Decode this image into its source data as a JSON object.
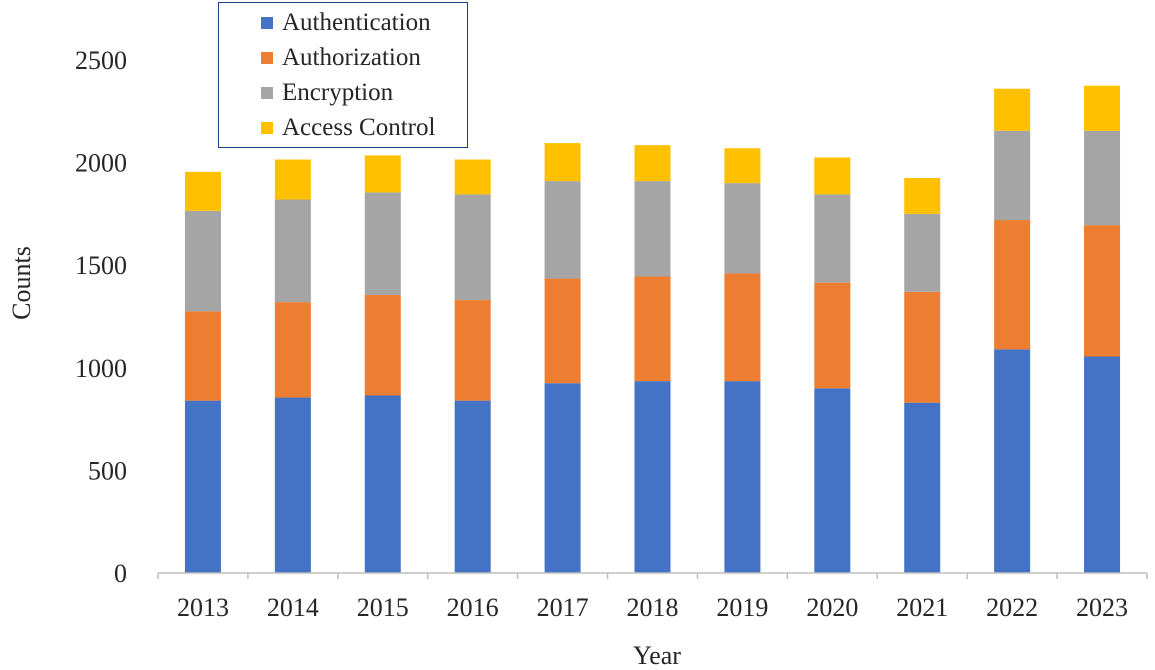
{
  "chart_data": {
    "type": "bar",
    "stacked": true,
    "title": "",
    "xlabel": "Year",
    "ylabel": "Counts",
    "ylim": [
      0,
      2500
    ],
    "yticks": [
      0,
      500,
      1000,
      1500,
      2000,
      2500
    ],
    "categories": [
      "2013",
      "2014",
      "2015",
      "2016",
      "2017",
      "2018",
      "2019",
      "2020",
      "2021",
      "2022",
      "2023"
    ],
    "series": [
      {
        "name": "Authentication",
        "color": "#4472c4",
        "values": [
          840,
          855,
          865,
          840,
          925,
          935,
          935,
          900,
          830,
          1090,
          1055
        ]
      },
      {
        "name": "Authorization",
        "color": "#ed7d31",
        "values": [
          435,
          465,
          490,
          490,
          510,
          510,
          525,
          515,
          540,
          630,
          640
        ]
      },
      {
        "name": "Encryption",
        "color": "#a5a5a5",
        "values": [
          490,
          500,
          500,
          515,
          475,
          465,
          440,
          430,
          380,
          435,
          460
        ]
      },
      {
        "name": "Access Control",
        "color": "#ffc000",
        "values": [
          190,
          195,
          180,
          170,
          185,
          175,
          170,
          180,
          175,
          205,
          220
        ]
      }
    ],
    "legend_position": "top-left",
    "grid": false
  }
}
